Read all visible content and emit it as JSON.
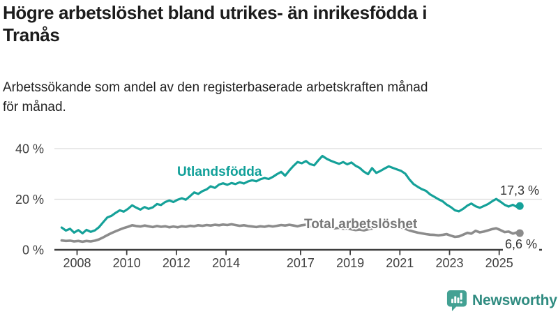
{
  "header": {
    "title_lines": [
      "Högre arbetslöshet bland utrikes- än inrikesfödda i",
      "Tranås"
    ],
    "subtitle_lines": [
      "Arbetssökande som andel av den registerbaserade arbetskraften månad",
      "för månad."
    ]
  },
  "chart_data": {
    "type": "line",
    "title": "Högre arbetslöshet bland utrikes- än inrikesfödda i Tranås",
    "subtitle": "Arbetssökande som andel av den registerbaserade arbetskraften månad för månad.",
    "unit": "%",
    "grid": "horizontal",
    "legend_position": "inline-labels",
    "ylim": [
      0,
      44
    ],
    "y_ticks": [
      {
        "value": 0,
        "label": "0 %"
      },
      {
        "value": 20,
        "label": "20 %"
      },
      {
        "value": 40,
        "label": "40 %"
      }
    ],
    "x_ticks": [
      {
        "value": 2008,
        "label": "2008"
      },
      {
        "value": 2010,
        "label": "2010"
      },
      {
        "value": 2012,
        "label": "2012"
      },
      {
        "value": 2014,
        "label": "2014"
      },
      {
        "value": 2017,
        "label": "2017"
      },
      {
        "value": 2019,
        "label": "2019"
      },
      {
        "value": 2021,
        "label": "2021"
      },
      {
        "value": 2023,
        "label": "2023"
      },
      {
        "value": 2025,
        "label": "2025"
      }
    ],
    "series": [
      {
        "name": "Utlandsfödda",
        "color": "#15a199",
        "label_color": "#11a099",
        "end_label": "17,3 %",
        "end_value": 17.3,
        "points": [
          [
            2007.38,
            8.8
          ],
          [
            2007.55,
            7.6
          ],
          [
            2007.72,
            8.3
          ],
          [
            2007.88,
            6.8
          ],
          [
            2008.05,
            7.8
          ],
          [
            2008.22,
            6.5
          ],
          [
            2008.38,
            7.9
          ],
          [
            2008.55,
            7.1
          ],
          [
            2008.72,
            7.7
          ],
          [
            2008.88,
            8.9
          ],
          [
            2009.05,
            10.9
          ],
          [
            2009.22,
            12.8
          ],
          [
            2009.38,
            13.4
          ],
          [
            2009.55,
            14.6
          ],
          [
            2009.72,
            15.6
          ],
          [
            2009.88,
            15.1
          ],
          [
            2010.05,
            16.2
          ],
          [
            2010.22,
            17.6
          ],
          [
            2010.38,
            16.7
          ],
          [
            2010.55,
            15.9
          ],
          [
            2010.72,
            16.9
          ],
          [
            2010.88,
            16.2
          ],
          [
            2011.05,
            16.8
          ],
          [
            2011.22,
            18.1
          ],
          [
            2011.38,
            17.7
          ],
          [
            2011.55,
            18.9
          ],
          [
            2011.72,
            19.5
          ],
          [
            2011.88,
            18.9
          ],
          [
            2012.05,
            19.8
          ],
          [
            2012.22,
            20.4
          ],
          [
            2012.38,
            19.8
          ],
          [
            2012.55,
            21.2
          ],
          [
            2012.72,
            22.7
          ],
          [
            2012.88,
            22.1
          ],
          [
            2013.05,
            23.2
          ],
          [
            2013.22,
            23.9
          ],
          [
            2013.38,
            25.1
          ],
          [
            2013.55,
            24.5
          ],
          [
            2013.72,
            25.8
          ],
          [
            2013.88,
            26.3
          ],
          [
            2014.05,
            25.7
          ],
          [
            2014.22,
            26.4
          ],
          [
            2014.38,
            26.0
          ],
          [
            2014.55,
            26.7
          ],
          [
            2014.72,
            26.2
          ],
          [
            2014.88,
            27.0
          ],
          [
            2015.05,
            27.5
          ],
          [
            2015.22,
            27.1
          ],
          [
            2015.38,
            27.9
          ],
          [
            2015.55,
            28.4
          ],
          [
            2015.72,
            28.0
          ],
          [
            2015.88,
            28.8
          ],
          [
            2016.05,
            29.9
          ],
          [
            2016.22,
            30.8
          ],
          [
            2016.38,
            29.3
          ],
          [
            2016.55,
            31.4
          ],
          [
            2016.72,
            33.2
          ],
          [
            2016.88,
            34.7
          ],
          [
            2017.05,
            34.2
          ],
          [
            2017.22,
            35.1
          ],
          [
            2017.38,
            33.9
          ],
          [
            2017.55,
            33.4
          ],
          [
            2017.72,
            35.4
          ],
          [
            2017.88,
            37.1
          ],
          [
            2018.05,
            36.0
          ],
          [
            2018.22,
            35.2
          ],
          [
            2018.38,
            34.6
          ],
          [
            2018.55,
            34.0
          ],
          [
            2018.72,
            34.7
          ],
          [
            2018.88,
            33.8
          ],
          [
            2019.05,
            34.5
          ],
          [
            2019.22,
            33.2
          ],
          [
            2019.38,
            32.4
          ],
          [
            2019.55,
            30.9
          ],
          [
            2019.72,
            29.9
          ],
          [
            2019.88,
            32.3
          ],
          [
            2020.05,
            30.4
          ],
          [
            2020.22,
            31.2
          ],
          [
            2020.38,
            32.1
          ],
          [
            2020.55,
            33.0
          ],
          [
            2020.72,
            32.4
          ],
          [
            2020.88,
            31.8
          ],
          [
            2021.05,
            31.2
          ],
          [
            2021.22,
            30.1
          ],
          [
            2021.38,
            27.9
          ],
          [
            2021.55,
            26.0
          ],
          [
            2021.72,
            24.9
          ],
          [
            2021.88,
            24.0
          ],
          [
            2022.05,
            23.3
          ],
          [
            2022.22,
            21.9
          ],
          [
            2022.38,
            21.0
          ],
          [
            2022.55,
            20.0
          ],
          [
            2022.72,
            19.2
          ],
          [
            2022.88,
            17.9
          ],
          [
            2023.05,
            16.9
          ],
          [
            2023.22,
            15.6
          ],
          [
            2023.38,
            15.2
          ],
          [
            2023.55,
            16.2
          ],
          [
            2023.72,
            17.5
          ],
          [
            2023.88,
            18.3
          ],
          [
            2024.05,
            17.2
          ],
          [
            2024.22,
            16.6
          ],
          [
            2024.38,
            17.3
          ],
          [
            2024.55,
            18.1
          ],
          [
            2024.72,
            19.2
          ],
          [
            2024.88,
            20.1
          ],
          [
            2025.05,
            19.0
          ],
          [
            2025.22,
            17.8
          ],
          [
            2025.38,
            17.1
          ],
          [
            2025.55,
            17.8
          ],
          [
            2025.72,
            16.9
          ],
          [
            2025.83,
            17.3
          ]
        ]
      },
      {
        "name": "Total arbetslöshet",
        "color": "#8c8c8c",
        "label_color": "#787878",
        "end_label": "6,6 %",
        "end_value": 6.6,
        "points": [
          [
            2007.38,
            3.7
          ],
          [
            2007.55,
            3.5
          ],
          [
            2007.72,
            3.6
          ],
          [
            2007.88,
            3.3
          ],
          [
            2008.05,
            3.5
          ],
          [
            2008.22,
            3.2
          ],
          [
            2008.38,
            3.5
          ],
          [
            2008.55,
            3.3
          ],
          [
            2008.72,
            3.6
          ],
          [
            2008.88,
            4.1
          ],
          [
            2009.05,
            4.9
          ],
          [
            2009.22,
            5.8
          ],
          [
            2009.38,
            6.6
          ],
          [
            2009.55,
            7.3
          ],
          [
            2009.72,
            8.0
          ],
          [
            2009.88,
            8.6
          ],
          [
            2010.05,
            9.1
          ],
          [
            2010.22,
            9.7
          ],
          [
            2010.38,
            9.4
          ],
          [
            2010.55,
            9.2
          ],
          [
            2010.72,
            9.6
          ],
          [
            2010.88,
            9.3
          ],
          [
            2011.05,
            9.0
          ],
          [
            2011.22,
            9.4
          ],
          [
            2011.38,
            9.1
          ],
          [
            2011.55,
            9.3
          ],
          [
            2011.72,
            8.9
          ],
          [
            2011.88,
            9.2
          ],
          [
            2012.05,
            8.9
          ],
          [
            2012.22,
            9.3
          ],
          [
            2012.38,
            9.1
          ],
          [
            2012.55,
            9.5
          ],
          [
            2012.72,
            9.3
          ],
          [
            2012.88,
            9.7
          ],
          [
            2013.05,
            9.5
          ],
          [
            2013.22,
            9.8
          ],
          [
            2013.38,
            9.6
          ],
          [
            2013.55,
            9.9
          ],
          [
            2013.72,
            9.7
          ],
          [
            2013.88,
            10.0
          ],
          [
            2014.05,
            9.8
          ],
          [
            2014.22,
            10.1
          ],
          [
            2014.38,
            9.8
          ],
          [
            2014.55,
            9.5
          ],
          [
            2014.72,
            9.7
          ],
          [
            2014.88,
            9.4
          ],
          [
            2015.05,
            9.2
          ],
          [
            2015.22,
            9.0
          ],
          [
            2015.38,
            9.3
          ],
          [
            2015.55,
            9.1
          ],
          [
            2015.72,
            9.5
          ],
          [
            2015.88,
            9.2
          ],
          [
            2016.05,
            9.5
          ],
          [
            2016.22,
            9.8
          ],
          [
            2016.38,
            9.6
          ],
          [
            2016.55,
            9.9
          ],
          [
            2016.72,
            9.6
          ],
          [
            2016.88,
            9.3
          ],
          [
            2017.05,
            9.7
          ],
          [
            2017.22,
            9.9
          ],
          [
            2017.38,
            9.5
          ],
          [
            2017.55,
            9.2
          ],
          [
            2017.72,
            9.4
          ],
          [
            2017.88,
            9.0
          ],
          [
            2018.05,
            8.7
          ],
          [
            2018.22,
            8.9
          ],
          [
            2018.38,
            8.5
          ],
          [
            2018.55,
            8.7
          ],
          [
            2018.72,
            8.3
          ],
          [
            2018.88,
            8.5
          ],
          [
            2019.05,
            8.1
          ],
          [
            2019.22,
            7.8
          ],
          [
            2019.38,
            8.0
          ],
          [
            2019.55,
            7.7
          ],
          [
            2019.72,
            8.1
          ],
          [
            2019.88,
            8.4
          ],
          [
            2020.05,
            8.9
          ],
          [
            2020.22,
            9.8
          ],
          [
            2020.38,
            10.3
          ],
          [
            2020.55,
            10.5
          ],
          [
            2020.72,
            10.1
          ],
          [
            2020.88,
            9.5
          ],
          [
            2021.05,
            8.9
          ],
          [
            2021.22,
            8.3
          ],
          [
            2021.38,
            7.7
          ],
          [
            2021.55,
            7.2
          ],
          [
            2021.72,
            6.8
          ],
          [
            2021.88,
            6.5
          ],
          [
            2022.05,
            6.2
          ],
          [
            2022.22,
            6.0
          ],
          [
            2022.38,
            5.9
          ],
          [
            2022.55,
            5.7
          ],
          [
            2022.72,
            5.9
          ],
          [
            2022.88,
            6.2
          ],
          [
            2023.05,
            5.6
          ],
          [
            2023.22,
            5.1
          ],
          [
            2023.38,
            5.3
          ],
          [
            2023.55,
            6.0
          ],
          [
            2023.72,
            6.7
          ],
          [
            2023.88,
            6.4
          ],
          [
            2024.05,
            7.5
          ],
          [
            2024.22,
            6.9
          ],
          [
            2024.38,
            7.2
          ],
          [
            2024.55,
            7.7
          ],
          [
            2024.72,
            8.2
          ],
          [
            2024.88,
            8.5
          ],
          [
            2025.05,
            7.8
          ],
          [
            2025.22,
            7.0
          ],
          [
            2025.38,
            7.2
          ],
          [
            2025.55,
            6.4
          ],
          [
            2025.72,
            6.9
          ],
          [
            2025.83,
            6.6
          ]
        ]
      }
    ]
  },
  "branding": {
    "name": "Newsworthy",
    "icon": "bar-chart-speech-bubble-icon",
    "text_color": "#2f8b80",
    "icon_color": "#43a193"
  }
}
